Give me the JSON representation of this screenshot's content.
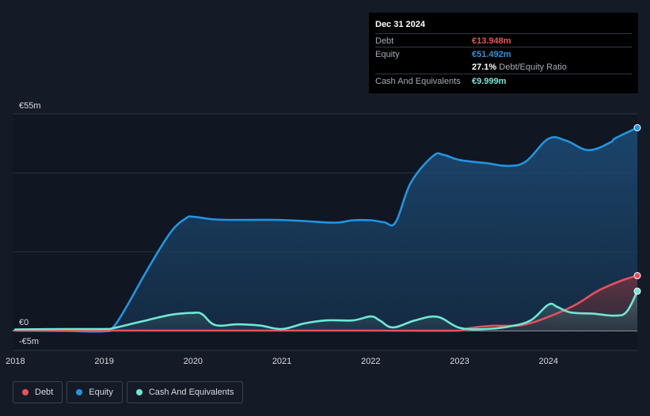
{
  "tooltip": {
    "date": "Dec 31 2024",
    "debt_label": "Debt",
    "debt_value": "€13.948m",
    "equity_label": "Equity",
    "equity_value": "€51.492m",
    "ratio_value": "27.1%",
    "ratio_label": "Debt/Equity Ratio",
    "cash_label": "Cash And Equivalents",
    "cash_value": "€9.999m"
  },
  "legend": {
    "debt": "Debt",
    "equity": "Equity",
    "cash": "Cash And Equivalents"
  },
  "colors": {
    "debt": "#e8505b",
    "equity": "#2394df",
    "cash": "#6ee8d5",
    "background": "#151b26",
    "plot_background": "#101723"
  },
  "chart_data": {
    "type": "line",
    "title": "",
    "xlabel": "",
    "ylabel": "",
    "ylim": [
      -5,
      55
    ],
    "y_ticks": [
      {
        "value": 55,
        "label": "€55m"
      },
      {
        "value": 0,
        "label": "€0"
      },
      {
        "value": -5,
        "label": "-€5m"
      }
    ],
    "x_ticks": [
      {
        "value": 2018,
        "label": "2018"
      },
      {
        "value": 2019,
        "label": "2019"
      },
      {
        "value": 2020,
        "label": "2020"
      },
      {
        "value": 2021,
        "label": "2021"
      },
      {
        "value": 2022,
        "label": "2022"
      },
      {
        "value": 2023,
        "label": "2023"
      },
      {
        "value": 2024,
        "label": "2024"
      }
    ],
    "xlim": [
      2017.97,
      2025.0
    ],
    "grid": true,
    "legend_position": "bottom-left",
    "series": [
      {
        "name": "Debt",
        "key": "debt",
        "points": [
          [
            2018.0,
            0.0
          ],
          [
            2019.0,
            0.0
          ],
          [
            2020.0,
            0.0
          ],
          [
            2021.0,
            0.0
          ],
          [
            2022.0,
            0.0
          ],
          [
            2023.0,
            0.0
          ],
          [
            2023.1,
            0.6
          ],
          [
            2023.35,
            1.2
          ],
          [
            2023.7,
            1.4
          ],
          [
            2024.0,
            3.5
          ],
          [
            2024.3,
            6.5
          ],
          [
            2024.55,
            10.0
          ],
          [
            2024.8,
            12.5
          ],
          [
            2025.0,
            13.948
          ]
        ]
      },
      {
        "name": "Equity",
        "key": "equity",
        "points": [
          [
            2018.0,
            0.0
          ],
          [
            2018.55,
            -0.1
          ],
          [
            2019.0,
            -0.2
          ],
          [
            2019.1,
            0.8
          ],
          [
            2019.25,
            6.0
          ],
          [
            2019.5,
            16.0
          ],
          [
            2019.75,
            25.0
          ],
          [
            2019.92,
            28.5
          ],
          [
            2020.0,
            28.9
          ],
          [
            2020.25,
            28.2
          ],
          [
            2020.6,
            28.1
          ],
          [
            2020.95,
            28.1
          ],
          [
            2021.25,
            27.8
          ],
          [
            2021.6,
            27.4
          ],
          [
            2021.8,
            28.0
          ],
          [
            2022.0,
            28.0
          ],
          [
            2022.15,
            27.5
          ],
          [
            2022.28,
            27.5
          ],
          [
            2022.45,
            37.5
          ],
          [
            2022.7,
            44.3
          ],
          [
            2022.82,
            44.6
          ],
          [
            2023.0,
            43.3
          ],
          [
            2023.3,
            42.5
          ],
          [
            2023.55,
            41.8
          ],
          [
            2023.75,
            43.0
          ],
          [
            2024.0,
            48.7
          ],
          [
            2024.2,
            48.2
          ],
          [
            2024.45,
            45.8
          ],
          [
            2024.7,
            47.8
          ],
          [
            2024.75,
            48.8
          ],
          [
            2025.0,
            51.492
          ]
        ]
      },
      {
        "name": "Cash And Equivalents",
        "key": "cash",
        "points": [
          [
            2018.0,
            0.3
          ],
          [
            2018.55,
            0.4
          ],
          [
            2019.0,
            0.4
          ],
          [
            2019.1,
            0.6
          ],
          [
            2019.4,
            2.2
          ],
          [
            2019.75,
            4.0
          ],
          [
            2020.0,
            4.5
          ],
          [
            2020.1,
            4.2
          ],
          [
            2020.25,
            1.4
          ],
          [
            2020.5,
            1.6
          ],
          [
            2020.75,
            1.3
          ],
          [
            2021.0,
            0.4
          ],
          [
            2021.25,
            1.8
          ],
          [
            2021.5,
            2.6
          ],
          [
            2021.8,
            2.6
          ],
          [
            2022.0,
            3.6
          ],
          [
            2022.1,
            2.6
          ],
          [
            2022.25,
            0.8
          ],
          [
            2022.5,
            2.6
          ],
          [
            2022.75,
            3.5
          ],
          [
            2023.0,
            0.7
          ],
          [
            2023.3,
            0.4
          ],
          [
            2023.55,
            1.0
          ],
          [
            2023.8,
            2.6
          ],
          [
            2024.0,
            6.6
          ],
          [
            2024.1,
            6.0
          ],
          [
            2024.25,
            4.6
          ],
          [
            2024.5,
            4.3
          ],
          [
            2024.75,
            3.8
          ],
          [
            2024.88,
            4.8
          ],
          [
            2025.0,
            9.999
          ]
        ]
      }
    ]
  }
}
